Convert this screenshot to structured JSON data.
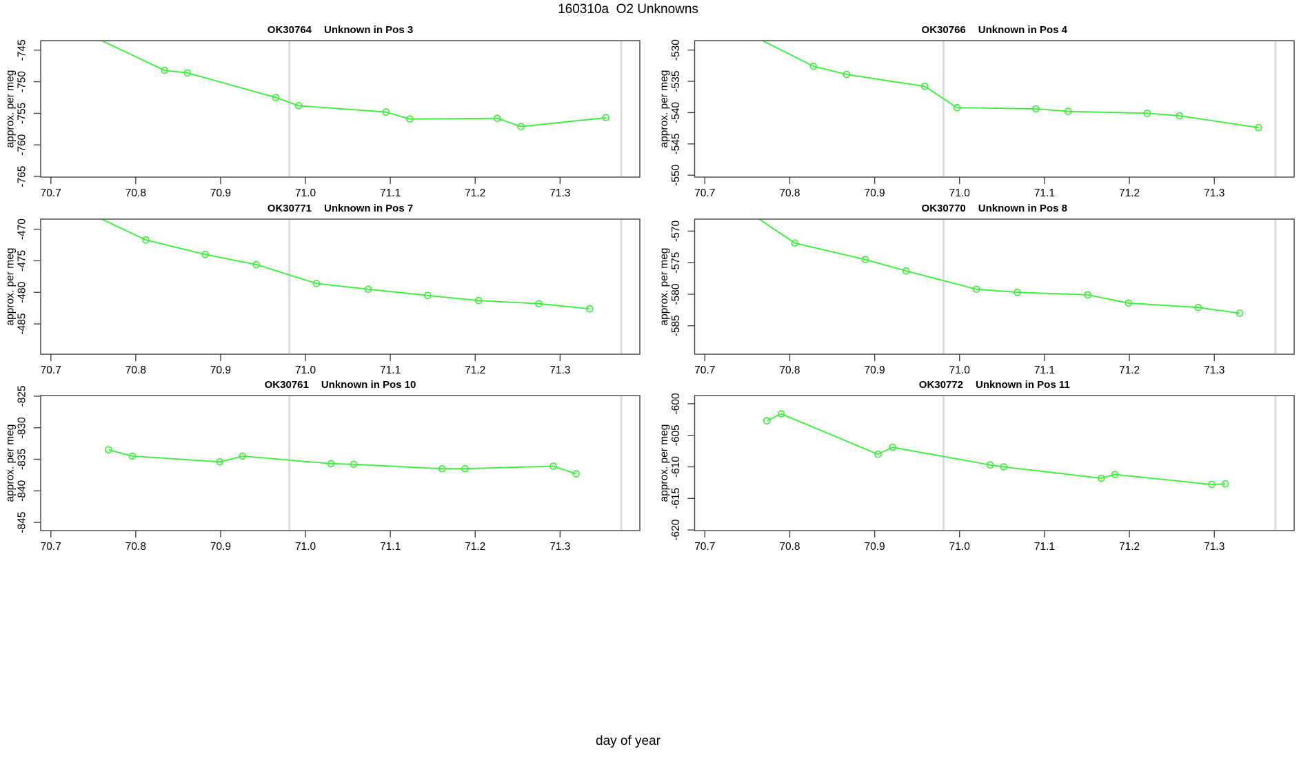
{
  "figure": {
    "title": "160310a  O2 Unknowns",
    "xlabel": "day of year",
    "ylabel": "approx. per meg",
    "background": "#ffffff",
    "line_color": "#35F035",
    "marker": "open-circle",
    "vline_color": "#DCDCDC",
    "axis_color": "#444444",
    "xlim": [
      70.688,
      71.394
    ],
    "xticks": [
      70.7,
      70.8,
      70.9,
      71.0,
      71.1,
      71.2,
      71.3
    ],
    "vlines": [
      70.981,
      71.372
    ]
  },
  "chart_data": [
    {
      "type": "line",
      "sample_id": "OK30764",
      "position_label": "Unknown in Pos 3",
      "xlabel": "day of year",
      "ylabel": "approx. per meg",
      "xlim": [
        70.688,
        71.394
      ],
      "ylim": [
        -765.1,
        -743.5
      ],
      "yticks": [
        -765,
        -760,
        -755,
        -750,
        -745
      ],
      "entry_offscale": true,
      "x": [
        70.73,
        70.834,
        70.861,
        70.965,
        70.992,
        71.095,
        71.123,
        71.226,
        71.254,
        71.354
      ],
      "y": [
        -741.6,
        -748.2,
        -748.6,
        -752.5,
        -753.8,
        -754.8,
        -755.9,
        -755.8,
        -757.1,
        -755.7
      ]
    },
    {
      "type": "line",
      "sample_id": "OK30766",
      "position_label": "Unknown in Pos 4",
      "xlabel": "day of year",
      "ylabel": "approx. per meg",
      "xlim": [
        70.688,
        71.394
      ],
      "ylim": [
        -550.3,
        -528.5
      ],
      "yticks": [
        -550,
        -545,
        -540,
        -535,
        -530
      ],
      "entry_offscale": true,
      "x": [
        70.73,
        70.828,
        70.867,
        70.959,
        70.997,
        71.09,
        71.128,
        71.221,
        71.259,
        71.352
      ],
      "y": [
        -525.9,
        -532.6,
        -533.9,
        -535.8,
        -539.2,
        -539.4,
        -539.8,
        -540.1,
        -540.5,
        -542.4
      ]
    },
    {
      "type": "line",
      "sample_id": "OK30771",
      "position_label": "Unknown in Pos 7",
      "xlabel": "day of year",
      "ylabel": "approx. per meg",
      "xlim": [
        70.688,
        71.394
      ],
      "ylim": [
        -489.8,
        -468.4
      ],
      "yticks": [
        -485,
        -480,
        -475,
        -470
      ],
      "entry_offscale": true,
      "x": [
        70.73,
        70.812,
        70.882,
        70.942,
        71.013,
        71.074,
        71.144,
        71.204,
        71.275,
        71.335
      ],
      "y": [
        -466.5,
        -471.7,
        -474.0,
        -475.6,
        -478.6,
        -479.5,
        -480.5,
        -481.3,
        -481.8,
        -482.6
      ]
    },
    {
      "type": "line",
      "sample_id": "OK30770",
      "position_label": "Unknown in Pos 8",
      "xlabel": "day of year",
      "ylabel": "approx. per meg",
      "xlim": [
        70.688,
        71.394
      ],
      "ylim": [
        -589.5,
        -568.1
      ],
      "yticks": [
        -585,
        -580,
        -575,
        -570
      ],
      "entry_offscale": true,
      "x": [
        70.73,
        70.806,
        70.889,
        70.937,
        71.02,
        71.068,
        71.151,
        71.199,
        71.281,
        71.33
      ],
      "y": [
        -565.0,
        -571.9,
        -574.5,
        -576.3,
        -579.2,
        -579.7,
        -580.1,
        -581.4,
        -582.1,
        -583.0
      ]
    },
    {
      "type": "line",
      "sample_id": "OK30761",
      "position_label": "Unknown in Pos 10",
      "xlabel": "day of year",
      "ylabel": "approx. per meg",
      "xlim": [
        70.688,
        71.394
      ],
      "ylim": [
        -846.3,
        -824.9
      ],
      "yticks": [
        -845,
        -840,
        -835,
        -830,
        -825
      ],
      "entry_offscale": false,
      "x": [
        70.768,
        70.796,
        70.899,
        70.926,
        71.03,
        71.057,
        71.161,
        71.188,
        71.292,
        71.319
      ],
      "y": [
        -833.5,
        -834.5,
        -835.4,
        -834.5,
        -835.7,
        -835.8,
        -836.5,
        -836.5,
        -836.1,
        -837.3
      ]
    },
    {
      "type": "line",
      "sample_id": "OK30772",
      "position_label": "Unknown in Pos 11",
      "xlabel": "day of year",
      "ylabel": "approx. per meg",
      "xlim": [
        70.688,
        71.394
      ],
      "ylim": [
        -620.1,
        -598.7
      ],
      "yticks": [
        -620,
        -615,
        -610,
        -605,
        -600
      ],
      "entry_offscale": false,
      "x": [
        70.773,
        70.79,
        70.904,
        70.921,
        71.036,
        71.052,
        71.167,
        71.183,
        71.297,
        71.313
      ],
      "y": [
        -602.7,
        -601.6,
        -608.0,
        -606.9,
        -609.7,
        -610.0,
        -611.8,
        -611.2,
        -612.8,
        -612.7
      ]
    }
  ]
}
